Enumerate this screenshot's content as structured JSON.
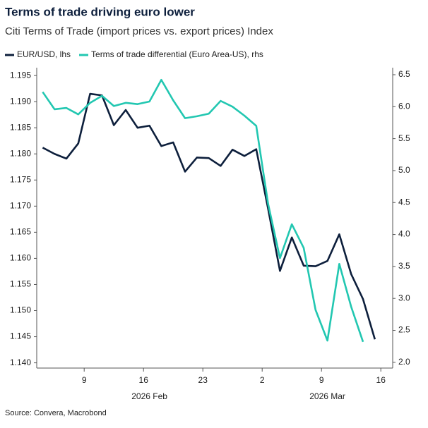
{
  "chart_data": {
    "type": "line",
    "title": "Terms of trade driving euro lower",
    "subtitle": "Citi Terms of Trade (import prices vs. export prices) Index",
    "source": "Source: Convera, Macrobond",
    "legend": "top-left",
    "x": [
      "2026-02-03",
      "2026-02-04",
      "2026-02-05",
      "2026-02-06",
      "2026-02-09",
      "2026-02-10",
      "2026-02-11",
      "2026-02-12",
      "2026-02-13",
      "2026-02-16",
      "2026-02-17",
      "2026-02-18",
      "2026-02-19",
      "2026-02-20",
      "2026-02-23",
      "2026-02-24",
      "2026-02-25",
      "2026-02-26",
      "2026-02-27",
      "2026-03-02",
      "2026-03-03",
      "2026-03-04",
      "2026-03-05",
      "2026-03-06",
      "2026-03-09",
      "2026-03-10",
      "2026-03-11",
      "2026-03-12",
      "2026-03-13"
    ],
    "xlim": [
      "2026-02-03",
      "2026-03-17"
    ],
    "xticks": [
      {
        "value": "2026-02-09",
        "label": "9"
      },
      {
        "value": "2026-02-16",
        "label": "16"
      },
      {
        "value": "2026-02-23",
        "label": "23"
      },
      {
        "value": "2026-03-02",
        "label": "2"
      },
      {
        "value": "2026-03-09",
        "label": "9"
      },
      {
        "value": "2026-03-16",
        "label": "16"
      }
    ],
    "x_groups": [
      "2026 Feb",
      "2026 Mar"
    ],
    "ylim": [
      1.139,
      1.1965
    ],
    "yticks": [
      {
        "value": 1.14,
        "label": "1.140"
      },
      1.145,
      {
        "value": 1.15,
        "label": "1.150"
      },
      1.155,
      {
        "value": 1.16,
        "label": "1.160"
      },
      1.165,
      {
        "value": 1.17,
        "label": "1.170"
      },
      1.175,
      {
        "value": 1.18,
        "label": "1.180"
      },
      1.185,
      {
        "value": 1.19,
        "label": "1.190"
      },
      1.195
    ],
    "y2lim": [
      1.91,
      6.61
    ],
    "y2ticks": [
      {
        "value": 2,
        "label": "2.0"
      },
      2.5,
      {
        "value": 3,
        "label": "3.0"
      },
      3.5,
      {
        "value": 4,
        "label": "4.0"
      },
      4.5,
      {
        "value": 5,
        "label": "5.0"
      },
      5.5,
      {
        "value": 6,
        "label": "6.0"
      },
      6.5
    ],
    "series": [
      {
        "name": "EUR/USD, lhs",
        "color": "#0d1f3c",
        "values": [
          1.1812,
          1.18,
          1.1791,
          1.182,
          1.1915,
          1.1912,
          1.1855,
          1.1884,
          1.185,
          1.1854,
          1.1815,
          1.1822,
          1.1766,
          1.1793,
          1.1792,
          1.1777,
          1.1808,
          1.1796,
          1.1809,
          1.1695,
          1.1576,
          1.164,
          1.1586,
          1.1585,
          1.1595,
          1.1646,
          1.157,
          1.1522,
          1.1445
        ]
      },
      {
        "name": "Terms of trade differential (Euro Area-US), rhs",
        "color": "#22c7b1",
        "axis": "y2",
        "values": [
          6.23,
          5.96,
          5.98,
          5.88,
          6.06,
          6.17,
          6.01,
          6.06,
          6.04,
          6.08,
          6.42,
          6.1,
          5.82,
          5.85,
          5.89,
          6.09,
          6.0,
          5.86,
          5.7,
          4.48,
          3.63,
          4.16,
          3.79,
          2.82,
          2.34,
          3.54,
          2.87,
          2.32,
          null
        ]
      }
    ]
  }
}
